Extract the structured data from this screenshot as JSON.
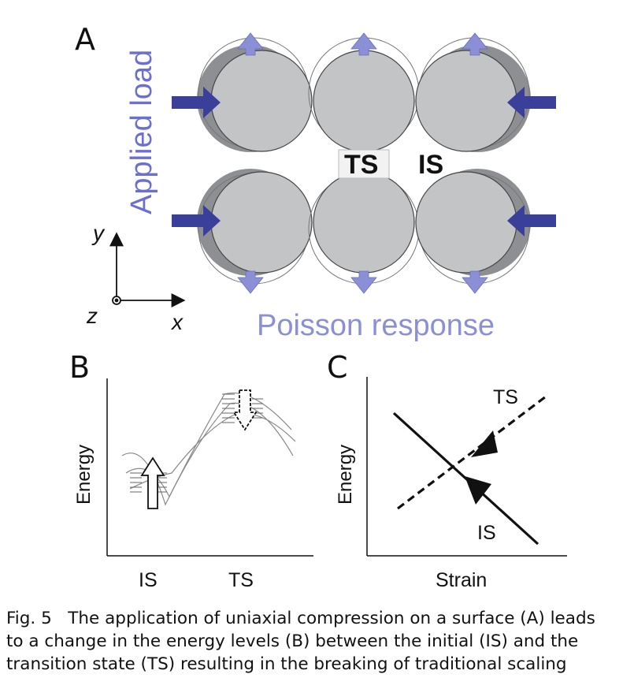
{
  "figure": {
    "panel_a": {
      "letter": "A",
      "applied_load": "Applied load",
      "poisson_response": "Poisson response",
      "ts_label": "TS",
      "is_label": "IS",
      "axis_y": "y",
      "axis_x": "x",
      "axis_z": "z"
    },
    "panel_b": {
      "letter": "B",
      "ylabel": "Energy",
      "x_left": "IS",
      "x_right": "TS"
    },
    "panel_c": {
      "letter": "C",
      "ylabel": "Energy",
      "xlabel": "Strain",
      "ts_label": "TS",
      "is_label": "IS"
    },
    "colors": {
      "arrow_blue": "#3a3f9a",
      "arrow_light": "#8b8fd6",
      "label_blue": "#6b6fd0",
      "sphere": "#c3c4c6",
      "shadow": "#8e8f92"
    }
  },
  "caption": {
    "fig_number": "Fig. 5",
    "line1": "The application of uniaxial compression on a surface (A) leads",
    "line2": "to a change in the energy levels (B) between the initial (IS) and the",
    "line3": "transition state (TS) resulting in the breaking of traditional scaling"
  }
}
